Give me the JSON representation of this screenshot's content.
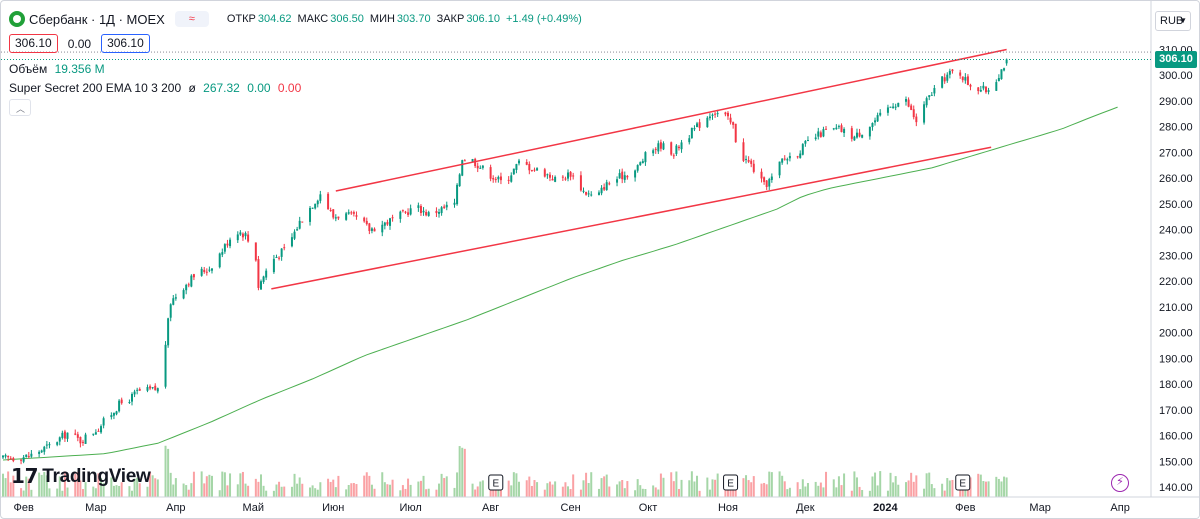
{
  "header": {
    "symbol_title": "Сбербанк · 1Д · MOEX",
    "pill_symbol": "≈",
    "ohlc": [
      {
        "key": "ОТКР",
        "value": "304.62"
      },
      {
        "key": "МАКС",
        "value": "306.50"
      },
      {
        "key": "МИН",
        "value": "303.70"
      },
      {
        "key": "ЗАКР",
        "value": "306.10"
      }
    ],
    "change": "+1.49 (+0.49%)",
    "bid": "306.10",
    "spread": "0.00",
    "ask": "306.10"
  },
  "volume_legend": {
    "label": "Объём",
    "value": "19.356 M"
  },
  "indicator_legend": {
    "label": "Super Secret 200 EMA 10 3 200",
    "circle": "ø",
    "v1": "267.32",
    "v2": "0.00",
    "v3": "0.00"
  },
  "currency": "RUB",
  "last_price_label": "306.10",
  "branding": {
    "name": "TradingView"
  },
  "colors": {
    "up": "#089981",
    "down": "#f23645",
    "ema": "#4caf50",
    "channel": "#f23645",
    "vol_up": "#a5d6a7",
    "vol_down": "#faa1a4"
  },
  "chart_data": {
    "type": "candlestick",
    "yaxis": {
      "min": 138,
      "max": 312,
      "ticks": [
        140,
        150,
        160,
        170,
        180,
        190,
        200,
        210,
        220,
        230,
        240,
        250,
        260,
        270,
        280,
        290,
        300,
        310
      ]
    },
    "xaxis_labels": [
      {
        "label": "Фев",
        "day": 8
      },
      {
        "label": "Мар",
        "day": 36
      },
      {
        "label": "Апр",
        "day": 67
      },
      {
        "label": "Май",
        "day": 97
      },
      {
        "label": "Июн",
        "day": 128
      },
      {
        "label": "Июл",
        "day": 158
      },
      {
        "label": "Авг",
        "day": 189
      },
      {
        "label": "Сен",
        "day": 220
      },
      {
        "label": "Окт",
        "day": 250
      },
      {
        "label": "Ноя",
        "day": 281
      },
      {
        "label": "Дек",
        "day": 311
      },
      {
        "label": "2024",
        "day": 342
      },
      {
        "label": "Фев",
        "day": 373
      },
      {
        "label": "Мар",
        "day": 402
      },
      {
        "label": "Апр",
        "day": 433
      }
    ],
    "price_keypoints": [
      [
        0,
        151
      ],
      [
        10,
        152
      ],
      [
        18,
        156
      ],
      [
        25,
        161
      ],
      [
        30,
        158
      ],
      [
        37,
        163
      ],
      [
        45,
        172
      ],
      [
        50,
        175
      ],
      [
        52,
        177
      ],
      [
        60,
        178
      ],
      [
        62,
        178
      ],
      [
        63,
        196
      ],
      [
        65,
        212
      ],
      [
        70,
        218
      ],
      [
        75,
        223
      ],
      [
        80,
        225
      ],
      [
        85,
        232
      ],
      [
        90,
        240
      ],
      [
        94,
        238
      ],
      [
        98,
        229
      ],
      [
        99,
        218
      ],
      [
        104,
        228
      ],
      [
        110,
        233
      ],
      [
        115,
        243
      ],
      [
        120,
        250
      ],
      [
        123,
        254
      ],
      [
        128,
        245
      ],
      [
        132,
        246
      ],
      [
        138,
        244
      ],
      [
        142,
        240
      ],
      [
        147,
        242
      ],
      [
        155,
        246
      ],
      [
        160,
        249
      ],
      [
        165,
        246
      ],
      [
        170,
        248
      ],
      [
        175,
        250
      ],
      [
        178,
        268
      ],
      [
        182,
        267
      ],
      [
        188,
        262
      ],
      [
        194,
        258
      ],
      [
        200,
        266
      ],
      [
        205,
        264
      ],
      [
        210,
        262
      ],
      [
        215,
        259
      ],
      [
        220,
        262
      ],
      [
        225,
        255
      ],
      [
        230,
        252
      ],
      [
        233,
        257
      ],
      [
        240,
        261
      ],
      [
        245,
        263
      ],
      [
        250,
        270
      ],
      [
        255,
        273
      ],
      [
        260,
        270
      ],
      [
        263,
        274
      ],
      [
        270,
        281
      ],
      [
        275,
        286
      ],
      [
        280,
        284
      ],
      [
        283,
        280
      ],
      [
        285,
        270
      ],
      [
        290,
        265
      ],
      [
        295,
        257
      ],
      [
        298,
        260
      ],
      [
        302,
        267
      ],
      [
        308,
        270
      ],
      [
        312,
        274
      ],
      [
        318,
        278
      ],
      [
        324,
        279
      ],
      [
        330,
        276
      ],
      [
        334,
        279
      ],
      [
        340,
        284
      ],
      [
        345,
        289
      ],
      [
        350,
        290
      ],
      [
        354,
        282
      ],
      [
        358,
        290
      ],
      [
        362,
        296
      ],
      [
        366,
        300
      ],
      [
        370,
        302
      ],
      [
        374,
        297
      ],
      [
        378,
        295
      ],
      [
        381,
        294
      ],
      [
        384,
        297
      ],
      [
        388,
        304
      ],
      [
        390,
        306
      ]
    ],
    "ema_keypoints": [
      [
        0,
        150.5
      ],
      [
        40,
        153
      ],
      [
        60,
        157
      ],
      [
        80,
        165
      ],
      [
        100,
        174
      ],
      [
        120,
        182
      ],
      [
        140,
        191
      ],
      [
        160,
        198
      ],
      [
        180,
        205
      ],
      [
        200,
        213
      ],
      [
        220,
        221
      ],
      [
        240,
        228
      ],
      [
        260,
        234
      ],
      [
        280,
        241
      ],
      [
        300,
        248
      ],
      [
        310,
        253
      ],
      [
        320,
        256
      ],
      [
        340,
        260
      ],
      [
        360,
        264
      ],
      [
        380,
        270
      ],
      [
        390,
        273
      ],
      [
        400,
        276
      ],
      [
        410,
        279
      ],
      [
        420,
        283
      ],
      [
        433,
        288
      ]
    ],
    "channel_lines": [
      {
        "start": [
          129,
          255
        ],
        "end": [
          389,
          310
        ]
      },
      {
        "start": [
          104,
          217
        ],
        "end": [
          383,
          272
        ]
      }
    ],
    "event_markers": [
      {
        "label": "E",
        "day": 191
      },
      {
        "label": "E",
        "day": 282
      },
      {
        "label": "E",
        "day": 372
      }
    ],
    "last_price": 306.1
  }
}
